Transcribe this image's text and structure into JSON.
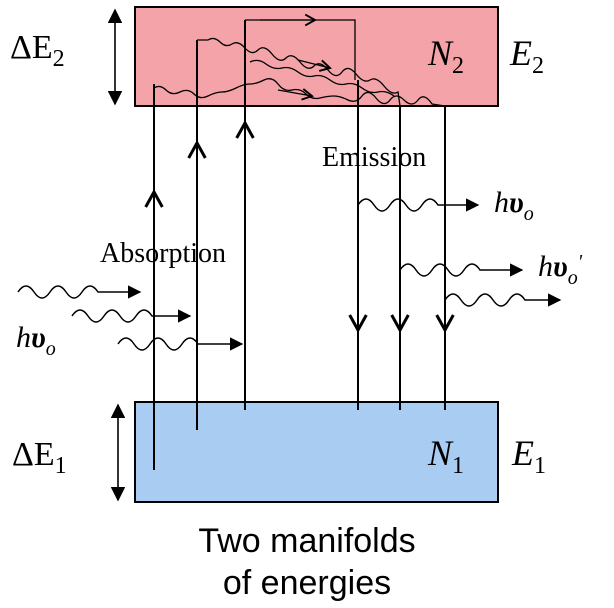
{
  "colors": {
    "upper_box_fill": "#f4a3a8",
    "lower_box_fill": "#a9cdf2",
    "stroke": "#000000",
    "background": "#ffffff"
  },
  "labels": {
    "delta_e2_symbol": "ΔE",
    "delta_e2_sub": "2",
    "n2_symbol": "N",
    "n2_sub": "2",
    "e2_symbol": "E",
    "e2_sub": "2",
    "delta_e1_symbol": "ΔE",
    "delta_e1_sub": "1",
    "n1_symbol": "N",
    "n1_sub": "1",
    "e1_symbol": "E",
    "e1_sub": "1",
    "absorption": "Absorption",
    "emission": "Emission",
    "photon_in_h": "h",
    "photon_in_nu": "υ",
    "photon_in_sub": "o",
    "photon_out1_h": "h",
    "photon_out1_nu": "υ",
    "photon_out1_sub": "o",
    "photon_out2_h": "h",
    "photon_out2_nu": "υ",
    "photon_out2_sub": "o",
    "photon_out2_prime": "'"
  },
  "caption": {
    "line1": "Two manifolds",
    "line2": "of energies"
  }
}
